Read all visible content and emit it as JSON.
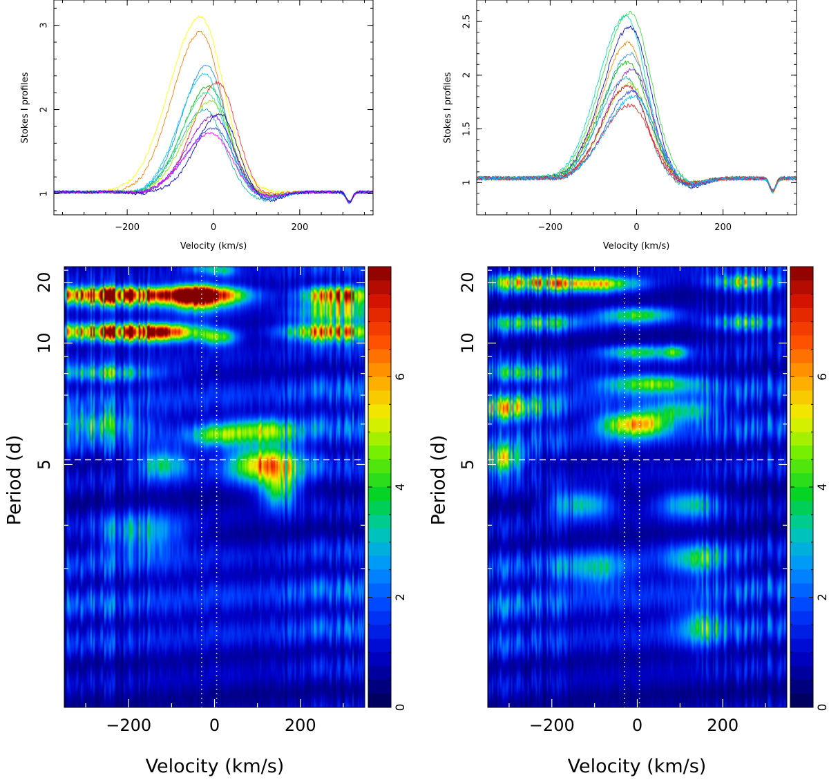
{
  "chart_data": [
    {
      "panel": "top-left",
      "type": "line",
      "xlabel": "Velocity (km/s)",
      "ylabel": "Stokes I profiles",
      "xlim": [
        -370,
        370
      ],
      "ylim": [
        0.75,
        3.3
      ],
      "xticks": [
        -200,
        0,
        200
      ],
      "xtick_labels": [
        "−200",
        "0",
        "200"
      ],
      "yticks": [
        1,
        2,
        3
      ],
      "ytick_labels": [
        "1",
        "2",
        "3"
      ],
      "baseline": 1.02,
      "absorption_feature": {
        "velocity": 315,
        "depth": 0.12
      },
      "series": [
        {
          "color": "#ffff00",
          "peak": 3.1,
          "center": -30,
          "sigma": 68,
          "shoulder": 0.0
        },
        {
          "color": "#ff7f00",
          "peak": 2.92,
          "center": -30,
          "sigma": 62,
          "shoulder": 0.02
        },
        {
          "color": "#1e90ff",
          "peak": 2.52,
          "center": -15,
          "sigma": 55,
          "shoulder": 0.08
        },
        {
          "color": "#ff3030",
          "peak": 2.32,
          "center": 10,
          "sigma": 55,
          "shoulder": 0.06
        },
        {
          "color": "#00d0ff",
          "peak": 2.42,
          "center": -20,
          "sigma": 56,
          "shoulder": 0.05
        },
        {
          "color": "#00c000",
          "peak": 2.28,
          "center": -10,
          "sigma": 57,
          "shoulder": 0.06
        },
        {
          "color": "#40e0a0",
          "peak": 2.2,
          "center": -15,
          "sigma": 56,
          "shoulder": 0.07
        },
        {
          "color": "#90ee00",
          "peak": 2.1,
          "center": -5,
          "sigma": 58,
          "shoulder": 0.05
        },
        {
          "color": "#20b2aa",
          "peak": 2.0,
          "center": -20,
          "sigma": 55,
          "shoulder": 0.1
        },
        {
          "color": "#8000ff",
          "peak": 1.92,
          "center": 0,
          "sigma": 57,
          "shoulder": 0.06
        },
        {
          "color": "#3050ff",
          "peak": 1.78,
          "center": 0,
          "sigma": 58,
          "shoulder": 0.08
        },
        {
          "color": "#ff00ff",
          "peak": 1.72,
          "center": -5,
          "sigma": 58,
          "shoulder": 0.06
        },
        {
          "color": "#1010c0",
          "peak": 1.95,
          "center": 15,
          "sigma": 52,
          "shoulder": 0.12
        }
      ]
    },
    {
      "panel": "top-right",
      "type": "line",
      "xlabel": "Velocity (km/s)",
      "ylabel": "Stokes I profiles",
      "xlim": [
        -370,
        370
      ],
      "ylim": [
        0.7,
        2.7
      ],
      "xticks": [
        -200,
        0,
        200
      ],
      "xtick_labels": [
        "−200",
        "0",
        "200"
      ],
      "yticks": [
        1,
        1.5,
        2,
        2.5
      ],
      "ytick_labels": [
        "1",
        "1.5",
        "2",
        "2.5"
      ],
      "baseline": 1.04,
      "absorption_feature": {
        "velocity": 315,
        "depth": 0.12
      },
      "series": [
        {
          "color": "#40e040",
          "peak": 2.58,
          "center": -15,
          "sigma": 62,
          "shoulder": 0.05
        },
        {
          "color": "#00e0c0",
          "peak": 2.55,
          "center": -25,
          "sigma": 60,
          "shoulder": 0.06
        },
        {
          "color": "#1010d0",
          "peak": 2.45,
          "center": -15,
          "sigma": 60,
          "shoulder": 0.1
        },
        {
          "color": "#ff8c00",
          "peak": 2.3,
          "center": -20,
          "sigma": 58,
          "shoulder": 0.05
        },
        {
          "color": "#1e90ff",
          "peak": 2.2,
          "center": -15,
          "sigma": 58,
          "shoulder": 0.07
        },
        {
          "color": "#00c000",
          "peak": 2.12,
          "center": -20,
          "sigma": 60,
          "shoulder": 0.05
        },
        {
          "color": "#8a2be2",
          "peak": 2.05,
          "center": -10,
          "sigma": 58,
          "shoulder": 0.06
        },
        {
          "color": "#20b2aa",
          "peak": 1.98,
          "center": -25,
          "sigma": 57,
          "shoulder": 0.08
        },
        {
          "color": "#a0f000",
          "peak": 1.92,
          "center": -15,
          "sigma": 58,
          "shoulder": 0.05
        },
        {
          "color": "#dc143c",
          "peak": 1.9,
          "center": -20,
          "sigma": 56,
          "shoulder": 0.06
        },
        {
          "color": "#3050ff",
          "peak": 1.85,
          "center": -10,
          "sigma": 58,
          "shoulder": 0.07
        },
        {
          "color": "#ff2020",
          "peak": 1.72,
          "center": -15,
          "sigma": 60,
          "shoulder": 0.05
        },
        {
          "color": "#00bfff",
          "peak": 1.8,
          "center": -5,
          "sigma": 62,
          "shoulder": 0.06
        }
      ]
    },
    {
      "panel": "bottom-left",
      "type": "heatmap",
      "xlabel": "Velocity (km/s)",
      "ylabel": "Period (d)",
      "xlim": [
        -350,
        350
      ],
      "ylim": [
        2.5,
        27
      ],
      "y_scale": "reciprocal",
      "xticks": [
        -200,
        0,
        200
      ],
      "xtick_labels": [
        "−200",
        "0",
        "200"
      ],
      "yticks": [
        5,
        10,
        20
      ],
      "ytick_labels": [
        "5",
        "10",
        "20"
      ],
      "yminor": [
        3.5,
        4,
        6,
        7,
        8,
        9,
        25
      ],
      "colorbar": {
        "min": 0,
        "max": 8,
        "ticks": [
          0,
          2,
          4,
          6
        ],
        "tick_labels": [
          "0",
          "2",
          "4",
          "6"
        ]
      },
      "reference_lines": {
        "vertical_dotted": [
          -30,
          5
        ],
        "horizontal_dashed": 5.1
      },
      "features": [
        {
          "v": -270,
          "p": 16.5,
          "sv": 90,
          "sp": 1.4,
          "amp": 5.4
        },
        {
          "v": -150,
          "p": 16.5,
          "sv": 110,
          "sp": 1.4,
          "amp": 4.6
        },
        {
          "v": -45,
          "p": 16.5,
          "sv": 38,
          "sp": 1.8,
          "amp": 6.8
        },
        {
          "v": 20,
          "p": 16.5,
          "sv": 55,
          "sp": 1.5,
          "amp": 3.8
        },
        {
          "v": 285,
          "p": 16.5,
          "sv": 55,
          "sp": 1.6,
          "amp": 6.0
        },
        {
          "v": -250,
          "p": 11.0,
          "sv": 120,
          "sp": 0.6,
          "amp": 5.6
        },
        {
          "v": -130,
          "p": 11.0,
          "sv": 70,
          "sp": 0.6,
          "amp": 4.4
        },
        {
          "v": 10,
          "p": 10.5,
          "sv": 30,
          "sp": 0.5,
          "amp": 3.2
        },
        {
          "v": 270,
          "p": 11.0,
          "sv": 75,
          "sp": 0.6,
          "amp": 5.2
        },
        {
          "v": -30,
          "p": 26.0,
          "sv": 30,
          "sp": 2.0,
          "amp": 1.6
        },
        {
          "v": 20,
          "p": 25.0,
          "sv": 20,
          "sp": 2.0,
          "amp": 2.0
        },
        {
          "v": 120,
          "p": 5.0,
          "sv": 55,
          "sp": 0.25,
          "amp": 5.6
        },
        {
          "v": 110,
          "p": 5.8,
          "sv": 55,
          "sp": 0.25,
          "amp": 3.6
        },
        {
          "v": 150,
          "p": 4.5,
          "sv": 30,
          "sp": 0.2,
          "amp": 2.8
        },
        {
          "v": -250,
          "p": 8.0,
          "sv": 80,
          "sp": 0.3,
          "amp": 2.6
        },
        {
          "v": -270,
          "p": 6.0,
          "sv": 70,
          "sp": 0.25,
          "amp": 2.6
        },
        {
          "v": -120,
          "p": 5.0,
          "sv": 45,
          "sp": 0.2,
          "amp": 2.6
        },
        {
          "v": 0,
          "p": 5.7,
          "sv": 40,
          "sp": 0.2,
          "amp": 2.6
        },
        {
          "v": -170,
          "p": 3.9,
          "sv": 70,
          "sp": 0.2,
          "amp": 2.2
        },
        {
          "v": 280,
          "p": 13.0,
          "sv": 60,
          "sp": 1.0,
          "amp": 2.8
        }
      ]
    },
    {
      "panel": "bottom-right",
      "type": "heatmap",
      "xlabel": "Velocity (km/s)",
      "ylabel": "Period (d)",
      "xlim": [
        -350,
        350
      ],
      "ylim": [
        2.5,
        27
      ],
      "y_scale": "reciprocal",
      "xticks": [
        -200,
        0,
        200
      ],
      "xtick_labels": [
        "−200",
        "0",
        "200"
      ],
      "yticks": [
        5,
        10,
        20
      ],
      "ytick_labels": [
        "5",
        "10",
        "20"
      ],
      "yminor": [
        3.5,
        4,
        6,
        7,
        8,
        9,
        25
      ],
      "colorbar": {
        "min": 0,
        "max": 8,
        "ticks": [
          0,
          2,
          4,
          6
        ],
        "tick_labels": [
          "0",
          "2",
          "4",
          "6"
        ]
      },
      "reference_lines": {
        "vertical_dotted": [
          -30,
          5
        ],
        "horizontal_dashed": 5.1
      },
      "features": [
        {
          "v": -100,
          "p": 19.5,
          "sv": 70,
          "sp": 1.6,
          "amp": 4.8
        },
        {
          "v": -260,
          "p": 20.0,
          "sv": 70,
          "sp": 1.8,
          "amp": 3.6
        },
        {
          "v": 260,
          "p": 20.0,
          "sv": 55,
          "sp": 1.8,
          "amp": 3.8
        },
        {
          "v": 0,
          "p": 13.0,
          "sv": 60,
          "sp": 0.8,
          "amp": 3.4
        },
        {
          "v": -240,
          "p": 12.0,
          "sv": 90,
          "sp": 0.7,
          "amp": 2.6
        },
        {
          "v": 260,
          "p": 12.0,
          "sv": 60,
          "sp": 0.7,
          "amp": 3.0
        },
        {
          "v": 0,
          "p": 9.3,
          "sv": 55,
          "sp": 0.35,
          "amp": 3.0
        },
        {
          "v": 90,
          "p": 9.3,
          "sv": 20,
          "sp": 0.35,
          "amp": 2.6
        },
        {
          "v": 30,
          "p": 7.5,
          "sv": 80,
          "sp": 0.3,
          "amp": 3.6
        },
        {
          "v": -40,
          "p": 6.0,
          "sv": 40,
          "sp": 0.25,
          "amp": 3.0
        },
        {
          "v": 20,
          "p": 6.0,
          "sv": 40,
          "sp": 0.25,
          "amp": 3.6
        },
        {
          "v": -300,
          "p": 6.5,
          "sv": 60,
          "sp": 0.3,
          "amp": 2.8
        },
        {
          "v": -320,
          "p": 5.1,
          "sv": 40,
          "sp": 0.2,
          "amp": 3.4
        },
        {
          "v": -130,
          "p": 4.3,
          "sv": 50,
          "sp": 0.15,
          "amp": 2.8
        },
        {
          "v": 120,
          "p": 4.3,
          "sv": 50,
          "sp": 0.15,
          "amp": 2.6
        },
        {
          "v": 140,
          "p": 3.6,
          "sv": 50,
          "sp": 0.12,
          "amp": 2.6
        },
        {
          "v": 150,
          "p": 3.0,
          "sv": 40,
          "sp": 0.1,
          "amp": 2.2
        },
        {
          "v": -100,
          "p": 3.5,
          "sv": 60,
          "sp": 0.12,
          "amp": 2.2
        },
        {
          "v": 100,
          "p": 6.4,
          "sv": 60,
          "sp": 0.25,
          "amp": 2.6
        },
        {
          "v": -260,
          "p": 8.0,
          "sv": 60,
          "sp": 0.3,
          "amp": 2.2
        }
      ]
    }
  ]
}
